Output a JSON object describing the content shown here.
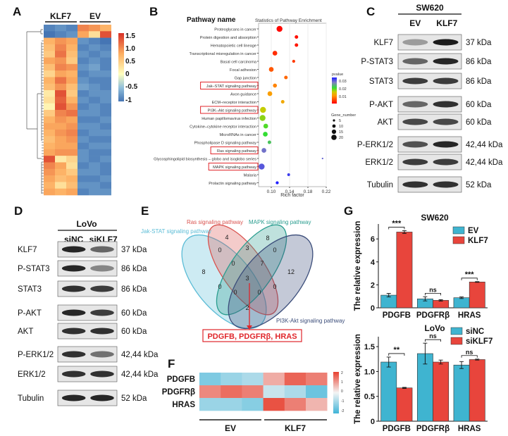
{
  "panel_labels": {
    "A": "A",
    "B": "B",
    "C": "C",
    "D": "D",
    "E": "E",
    "F": "F",
    "G": "G"
  },
  "western_c": {
    "cell_line": "SW620",
    "lanes": [
      "EV",
      "KLF7"
    ],
    "rows": [
      {
        "protein": "KLF7",
        "size": "37 kDa",
        "intensity": [
          0.35,
          0.95
        ]
      },
      {
        "protein": "P-STAT3",
        "size": "86 kDa",
        "intensity": [
          0.6,
          0.9
        ]
      },
      {
        "protein": "STAT3",
        "size": "86 kDa",
        "intensity": [
          0.8,
          0.8
        ]
      },
      {
        "protein": "P-AKT",
        "size": "60 kDa",
        "intensity": [
          0.6,
          0.85
        ]
      },
      {
        "protein": "AKT",
        "size": "60 kDa",
        "intensity": [
          0.75,
          0.75
        ]
      },
      {
        "protein": "P-ERK1/2",
        "size": "42,44 kDa",
        "intensity": [
          0.7,
          0.9
        ]
      },
      {
        "protein": "ERK1/2",
        "size": "42,44 kDa",
        "intensity": [
          0.8,
          0.8
        ]
      },
      {
        "protein": "Tubulin",
        "size": "52 kDa",
        "intensity": [
          0.85,
          0.85
        ]
      }
    ]
  },
  "western_d": {
    "cell_line": "LoVo",
    "lanes": [
      "siNC",
      "siKLF7"
    ],
    "rows": [
      {
        "protein": "KLF7",
        "size": "37 kDa",
        "intensity": [
          0.9,
          0.6
        ]
      },
      {
        "protein": "P-STAT3",
        "size": "86 kDa",
        "intensity": [
          0.9,
          0.45
        ]
      },
      {
        "protein": "STAT3",
        "size": "86 kDa",
        "intensity": [
          0.85,
          0.8
        ]
      },
      {
        "protein": "P-AKT",
        "size": "60 kDa",
        "intensity": [
          0.9,
          0.8
        ]
      },
      {
        "protein": "AKT",
        "size": "60 kDa",
        "intensity": [
          0.85,
          0.85
        ]
      },
      {
        "protein": "P-ERK1/2",
        "size": "42,44 kDa",
        "intensity": [
          0.85,
          0.55
        ]
      },
      {
        "protein": "ERK1/2",
        "size": "42,44 kDa",
        "intensity": [
          0.85,
          0.85
        ]
      },
      {
        "protein": "Tubulin",
        "size": "52 kDa",
        "intensity": [
          0.9,
          0.9
        ]
      }
    ]
  },
  "venn": {
    "sets": [
      {
        "name": "Jak-STAT signaling pathway",
        "color": "#5bbcd6"
      },
      {
        "name": "Ras signaling pathway",
        "color": "#d9534f"
      },
      {
        "name": "MAPK signaling pathway",
        "color": "#2a9d8f"
      },
      {
        "name": "PI3K-Akt signaling pathway",
        "color": "#3b4d7a"
      }
    ],
    "counts": [
      "4",
      "8",
      "0",
      "3",
      "0",
      "8",
      "0",
      "7",
      "12",
      "3",
      "0",
      "0",
      "0",
      "0",
      "2"
    ],
    "result": "PDGFB, PDGFRβ, HRAS",
    "result_color": "#e0262b"
  },
  "chart_data": [
    {
      "id": "heatmap_a",
      "type": "heatmap",
      "column_groups": [
        "KLF7",
        "EV"
      ],
      "legend_ticks": [
        "1.5",
        "1.0",
        "0.5",
        "0",
        "-0.5",
        "-1"
      ],
      "range": [
        -1,
        1.5
      ],
      "rows": [
        [
          -0.9,
          -0.8,
          -0.9,
          1.0,
          0.9,
          0.7
        ],
        [
          -1.0,
          -0.9,
          -0.8,
          0.8,
          0.3,
          1.3
        ],
        [
          0.7,
          0.9,
          0.8,
          -0.8,
          -0.9,
          -1.0
        ],
        [
          0.6,
          1.0,
          0.7,
          -0.9,
          -0.8,
          -0.9
        ],
        [
          0.5,
          1.1,
          0.6,
          -0.8,
          -0.9,
          -0.8
        ],
        [
          0.8,
          0.9,
          0.5,
          -0.9,
          -0.8,
          -0.9
        ],
        [
          0.6,
          1.0,
          0.9,
          -0.8,
          -0.7,
          -0.9
        ],
        [
          0.4,
          0.8,
          0.7,
          -0.9,
          -0.8,
          -0.8
        ],
        [
          0.7,
          1.1,
          0.8,
          -0.8,
          -0.9,
          -0.9
        ],
        [
          0.6,
          0.9,
          0.6,
          -0.7,
          -0.8,
          -0.9
        ],
        [
          0.2,
          1.3,
          0.5,
          -0.9,
          -0.8,
          -0.8
        ],
        [
          0.3,
          1.2,
          0.7,
          -0.8,
          -0.9,
          -0.8
        ],
        [
          0.1,
          1.3,
          0.9,
          -0.9,
          -0.8,
          -0.9
        ],
        [
          0.5,
          1.0,
          1.1,
          -0.8,
          -0.8,
          -0.9
        ],
        [
          0.7,
          0.9,
          0.8,
          -0.9,
          -0.9,
          -0.8
        ],
        [
          0.8,
          0.8,
          0.9,
          -0.8,
          -0.8,
          -0.9
        ],
        [
          0.7,
          0.9,
          1.0,
          -0.9,
          -0.8,
          -0.8
        ],
        [
          0.6,
          0.8,
          0.9,
          -0.8,
          -0.9,
          -0.9
        ],
        [
          0.7,
          0.8,
          0.8,
          -0.9,
          -0.8,
          -0.8
        ],
        [
          0.8,
          0.9,
          0.9,
          -0.8,
          -0.9,
          -0.9
        ],
        [
          1.3,
          0.2,
          0.4,
          -0.8,
          -0.9,
          -0.8
        ],
        [
          1.0,
          0.8,
          0.3,
          -0.9,
          -0.8,
          -0.9
        ],
        [
          0.9,
          0.7,
          0.5,
          -0.8,
          -0.8,
          -0.9
        ],
        [
          0.8,
          0.6,
          0.7,
          -0.9,
          -0.9,
          -0.8
        ],
        [
          0.7,
          0.3,
          0.6,
          -0.8,
          -0.8,
          -0.9
        ],
        [
          0.8,
          0.7,
          0.8,
          -0.9,
          -0.8,
          -0.8
        ]
      ]
    },
    {
      "id": "enrichment_b",
      "type": "scatter",
      "header": "Pathway name",
      "title": "Statistics of Pathway Enrichment",
      "xlabel": "Rich factor",
      "xlim": [
        0.072,
        0.22
      ],
      "xticks": [
        "0.10",
        "0.14",
        "0.18",
        "0.22"
      ],
      "color_legend": {
        "title": "pvalue",
        "ticks": [
          "0.03",
          "0.02",
          "0.01"
        ],
        "range": [
          0,
          0.035
        ]
      },
      "size_legend": {
        "title": "Gene_number",
        "ticks": [
          "5",
          "10",
          "15",
          "20"
        ]
      },
      "points": [
        {
          "name": "Proteoglycans in cancer",
          "rich_factor": 0.118,
          "pvalue": 0.0005,
          "genes": 20,
          "highlighted": false
        },
        {
          "name": "Protein digestion and absorption",
          "rich_factor": 0.155,
          "pvalue": 0.001,
          "genes": 10,
          "highlighted": false
        },
        {
          "name": "Hematopoietic cell lineage",
          "rich_factor": 0.155,
          "pvalue": 0.0015,
          "genes": 10,
          "highlighted": false
        },
        {
          "name": "Transcriptional misregulation in cancer",
          "rich_factor": 0.108,
          "pvalue": 0.003,
          "genes": 15,
          "highlighted": false
        },
        {
          "name": "Basal cell carcinoma",
          "rich_factor": 0.149,
          "pvalue": 0.004,
          "genes": 8,
          "highlighted": false
        },
        {
          "name": "Focal adhesion",
          "rich_factor": 0.1,
          "pvalue": 0.006,
          "genes": 15,
          "highlighted": false
        },
        {
          "name": "Gap junction",
          "rich_factor": 0.132,
          "pvalue": 0.007,
          "genes": 10,
          "highlighted": false
        },
        {
          "name": "Jak–STAT signaling pathway",
          "rich_factor": 0.108,
          "pvalue": 0.009,
          "genes": 12,
          "highlighted": true
        },
        {
          "name": "Axon guidance",
          "rich_factor": 0.097,
          "pvalue": 0.011,
          "genes": 15,
          "highlighted": false
        },
        {
          "name": "ECM–receptor interaction",
          "rich_factor": 0.125,
          "pvalue": 0.012,
          "genes": 10,
          "highlighted": false
        },
        {
          "name": "PI3K–Akt signaling pathway",
          "rich_factor": 0.082,
          "pvalue": 0.016,
          "genes": 20,
          "highlighted": true
        },
        {
          "name": "Human papillomavirus infection",
          "rich_factor": 0.081,
          "pvalue": 0.018,
          "genes": 20,
          "highlighted": false
        },
        {
          "name": "Cytokine–cytokine receptor interaction",
          "rich_factor": 0.088,
          "pvalue": 0.02,
          "genes": 15,
          "highlighted": false
        },
        {
          "name": "MicroRNAs in cancer",
          "rich_factor": 0.087,
          "pvalue": 0.021,
          "genes": 15,
          "highlighted": false
        },
        {
          "name": "Phospholipase D signaling pathway",
          "rich_factor": 0.096,
          "pvalue": 0.023,
          "genes": 10,
          "highlighted": false
        },
        {
          "name": "Ras signaling pathway",
          "rich_factor": 0.084,
          "pvalue": 0.029,
          "genes": 15,
          "highlighted": true
        },
        {
          "name": "Glycosphingolipid biosynthesis – globo and isoglobo series",
          "rich_factor": 0.212,
          "pvalue": 0.03,
          "genes": 2,
          "highlighted": false
        },
        {
          "name": "MAPK signaling pathway",
          "rich_factor": 0.079,
          "pvalue": 0.031,
          "genes": 20,
          "highlighted": true
        },
        {
          "name": "Malaria",
          "rich_factor": 0.138,
          "pvalue": 0.033,
          "genes": 7,
          "highlighted": false
        },
        {
          "name": "Prolactin signaling pathway",
          "rich_factor": 0.113,
          "pvalue": 0.035,
          "genes": 8,
          "highlighted": false
        }
      ]
    },
    {
      "id": "heatmap_f",
      "type": "heatmap",
      "genes": [
        "PDGFB",
        "PDGFRβ",
        "HRAS"
      ],
      "groups": [
        "EV",
        "KLF7"
      ],
      "legend_ticks": [
        "2",
        "1",
        "0",
        "-1",
        "-2"
      ],
      "range": [
        -2,
        2
      ],
      "values": [
        [
          -1.3,
          -1.0,
          -0.8,
          0.8,
          1.6,
          1.3
        ],
        [
          1.2,
          1.5,
          1.3,
          -0.5,
          -0.8,
          -1.5
        ],
        [
          -1.0,
          -1.0,
          -1.2,
          1.8,
          1.3,
          0.7
        ]
      ]
    },
    {
      "id": "bar_g_sw620",
      "type": "bar",
      "title": "SW620",
      "ylabel": "The relative expression",
      "categories": [
        "PDGFB",
        "PDGFRβ",
        "HRAS"
      ],
      "ylim": [
        0,
        7.3
      ],
      "yticks": [
        "0",
        "2",
        "4",
        "6"
      ],
      "series": [
        {
          "name": "EV",
          "color": "#3fb4d0",
          "values": [
            1.1,
            0.78,
            0.88
          ],
          "errors": [
            0.15,
            0.18,
            0.07
          ]
        },
        {
          "name": "KLF7",
          "color": "#e8453c",
          "values": [
            6.6,
            0.65,
            2.25
          ],
          "errors": [
            0.12,
            0.06,
            0.03
          ]
        }
      ],
      "significance": [
        "***",
        "ns",
        "***"
      ]
    },
    {
      "id": "bar_g_lovo",
      "type": "bar",
      "title": "LoVo",
      "ylabel": "The relative expression",
      "categories": [
        "PDGFB",
        "PDGFRβ",
        "HRAS"
      ],
      "ylim": [
        0,
        1.7
      ],
      "yticks": [
        "0",
        "0.5",
        "1.0",
        "1.5"
      ],
      "series": [
        {
          "name": "siNC",
          "color": "#3fb4d0",
          "values": [
            1.19,
            1.36,
            1.13
          ],
          "errors": [
            0.1,
            0.21,
            0.07
          ]
        },
        {
          "name": "siKLF7",
          "color": "#e8453c",
          "values": [
            0.67,
            1.19,
            1.24
          ],
          "errors": [
            0.01,
            0.04,
            0.01
          ]
        }
      ],
      "significance": [
        "**",
        "ns",
        "ns"
      ]
    }
  ]
}
